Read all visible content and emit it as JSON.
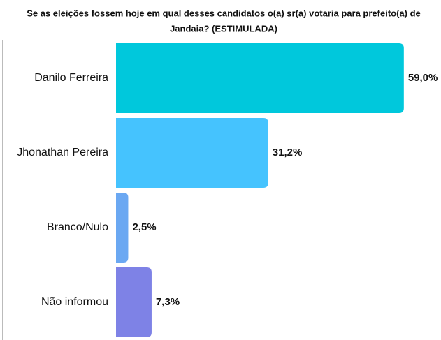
{
  "chart_data": {
    "type": "bar",
    "orientation": "horizontal",
    "title": [
      "Se as eleições fossem hoje em qual desses candidatos o(a) sr(a) votaria para prefeito(a) de",
      "Jandaia? (ESTIMULADA)"
    ],
    "categories": [
      "Danilo Ferreira",
      "Jhonathan Pereira",
      "Branco/Nulo",
      "Não informou"
    ],
    "values": [
      59.0,
      31.2,
      2.5,
      7.3
    ],
    "value_labels": [
      "59,0%",
      "31,2%",
      "2,5%",
      "7,3%"
    ],
    "colors": [
      "#00c8dc",
      "#45c3fe",
      "#6ba8f2",
      "#7e82e6"
    ]
  }
}
